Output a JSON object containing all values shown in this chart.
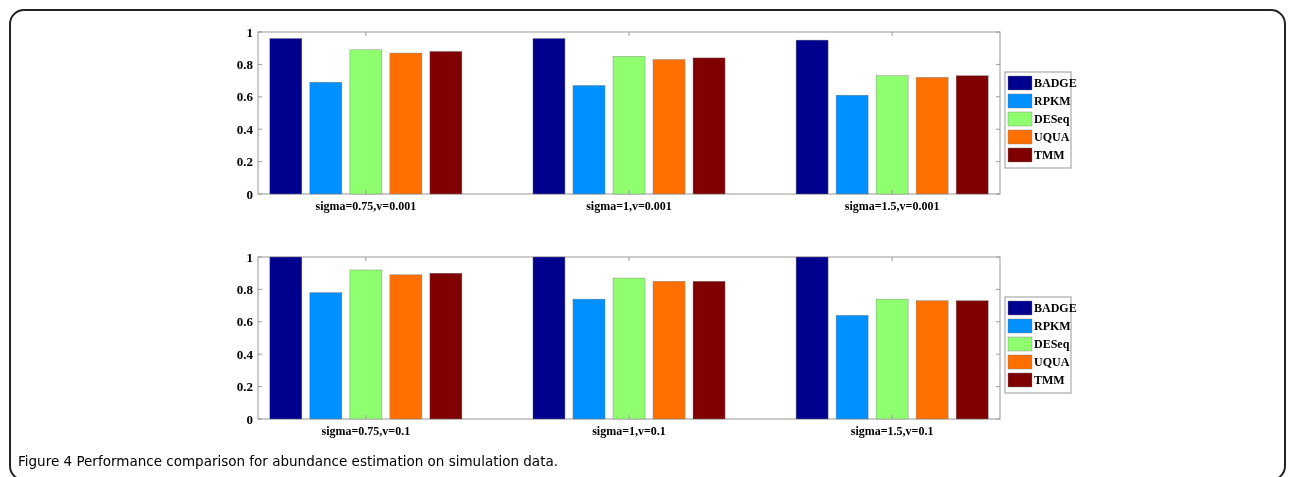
{
  "chart_data": [
    {
      "type": "bar",
      "categories": [
        "sigma=0.75,v=0.001",
        "sigma=1,v=0.001",
        "sigma=1.5,v=0.001"
      ],
      "series": [
        {
          "name": "BADGE",
          "color": "#00008f",
          "values": [
            0.96,
            0.96,
            0.95
          ]
        },
        {
          "name": "RPKM",
          "color": "#0090ff",
          "values": [
            0.69,
            0.67,
            0.61
          ]
        },
        {
          "name": "DESeq",
          "color": "#8fff6f",
          "values": [
            0.89,
            0.85,
            0.73
          ]
        },
        {
          "name": "UQUA",
          "color": "#ff7000",
          "values": [
            0.87,
            0.83,
            0.72
          ]
        },
        {
          "name": "TMM",
          "color": "#800000",
          "values": [
            0.88,
            0.84,
            0.73
          ]
        }
      ],
      "ylim": [
        0,
        1
      ],
      "yticks": [
        0,
        0.2,
        0.4,
        0.6,
        0.8,
        1
      ],
      "legend": "right"
    },
    {
      "type": "bar",
      "categories": [
        "sigma=0.75,v=0.1",
        "sigma=1,v=0.1",
        "sigma=1.5,v=0.1"
      ],
      "series": [
        {
          "name": "BADGE",
          "color": "#00008f",
          "values": [
            1.0,
            1.0,
            1.0
          ]
        },
        {
          "name": "RPKM",
          "color": "#0090ff",
          "values": [
            0.78,
            0.74,
            0.64
          ]
        },
        {
          "name": "DESeq",
          "color": "#8fff6f",
          "values": [
            0.92,
            0.87,
            0.74
          ]
        },
        {
          "name": "UQUA",
          "color": "#ff7000",
          "values": [
            0.89,
            0.85,
            0.73
          ]
        },
        {
          "name": "TMM",
          "color": "#800000",
          "values": [
            0.9,
            0.85,
            0.73
          ]
        }
      ],
      "ylim": [
        0,
        1
      ],
      "yticks": [
        0,
        0.2,
        0.4,
        0.6,
        0.8,
        1
      ],
      "legend": "right",
      "annotations": [
        "Figure 4 Performance comparison for abundance estimation on simulation data."
      ]
    }
  ]
}
